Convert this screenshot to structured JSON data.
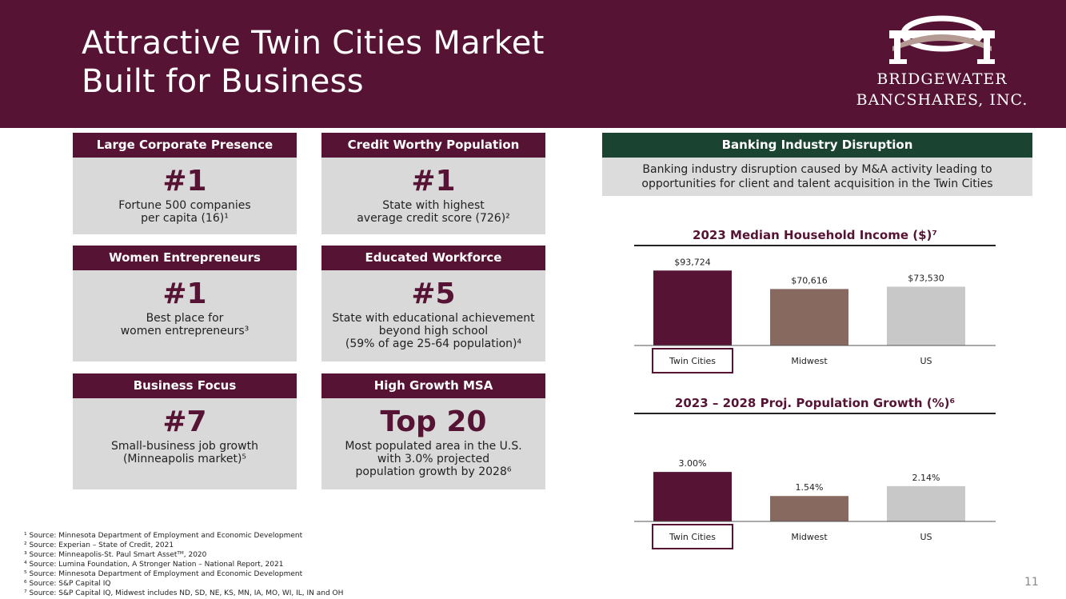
{
  "header": {
    "title_line1": "Attractive Twin Cities Market",
    "title_line2": "Built for Business",
    "logo_line1": "BRIDGEWATER",
    "logo_line2": "BANCSHARES, INC."
  },
  "cards": [
    {
      "heading": "Large Corporate Presence",
      "rank": "#1",
      "lines": [
        "Fortune 500 companies",
        "per capita (16)¹"
      ]
    },
    {
      "heading": "Credit Worthy Population",
      "rank": "#1",
      "lines": [
        "State with highest",
        "average credit score (726)²"
      ]
    },
    {
      "heading": "Women Entrepreneurs",
      "rank": "#1",
      "lines": [
        "Best place for",
        "women entrepreneurs³"
      ]
    },
    {
      "heading": "Educated Workforce",
      "rank": "#5",
      "lines": [
        "State with educational achievement",
        "beyond high school",
        "(59% of age 25-64 population)⁴"
      ]
    },
    {
      "heading": "Business Focus",
      "rank": "#7",
      "lines": [
        "Small-business job growth",
        "(Minneapolis market)⁵"
      ]
    },
    {
      "heading": "High Growth MSA",
      "rank": "Top 20",
      "lines": [
        "Most populated area in the U.S.",
        "with 3.0% projected",
        "population growth by 2028⁶"
      ]
    }
  ],
  "disruption": {
    "heading": "Banking Industry Disruption",
    "line1": "Banking industry disruption caused by M&A activity leading to",
    "line2": "opportunities for client and talent acquisition in the Twin Cities"
  },
  "chart_data": [
    {
      "type": "bar",
      "title": "2023 Median Household Income ($)⁷",
      "categories": [
        "Twin Cities",
        "Midwest",
        "US"
      ],
      "values": [
        93724,
        70616,
        73530
      ],
      "labels": [
        "$93,724",
        "$70,616",
        "$73,530"
      ],
      "colors": [
        "#561334",
        "#87695f",
        "#c8c8c8"
      ],
      "highlight": "Twin Cities",
      "ylim": [
        0,
        100000
      ]
    },
    {
      "type": "bar",
      "title": "2023 – 2028 Proj. Population Growth (%)⁶",
      "categories": [
        "Twin Cities",
        "Midwest",
        "US"
      ],
      "values": [
        3.0,
        1.54,
        2.14
      ],
      "labels": [
        "3.00%",
        "1.54%",
        "2.14%"
      ],
      "colors": [
        "#561334",
        "#87695f",
        "#c8c8c8"
      ],
      "highlight": "Twin Cities",
      "ylim": [
        0,
        3.2
      ]
    }
  ],
  "footnotes": [
    "¹ Source: Minnesota Department of Employment and Economic Development",
    "² Source: Experian – State of Credit, 2021",
    "³ Source: Minneapolis-St. Paul Smart Assetᵀᴹ, 2020",
    "⁴ Source: Lumina Foundation, A Stronger Nation – National Report, 2021",
    "⁵ Source: Minnesota Department of Employment and Economic Development",
    "⁶ Source: S&P Capital IQ",
    "⁷ Source: S&P Capital IQ, Midwest includes ND, SD, NE, KS, MN, IA, MO, WI, IL, IN and OH"
  ],
  "page_number": "11"
}
